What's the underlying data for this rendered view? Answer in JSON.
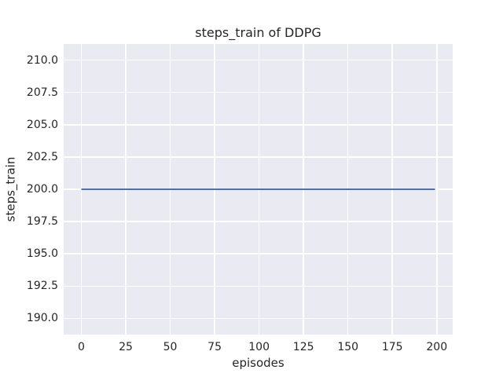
{
  "chart_data": {
    "type": "line",
    "title": "steps_train of DDPG",
    "xlabel": "episodes",
    "ylabel": "steps_train",
    "series": [
      {
        "name": "steps_train",
        "x": [
          0,
          199
        ],
        "y": [
          200,
          200
        ],
        "color": "#4c72b0",
        "line_width": 2
      }
    ],
    "x_ticks": [
      {
        "value": 0,
        "label": "0"
      },
      {
        "value": 25,
        "label": "25"
      },
      {
        "value": 50,
        "label": "50"
      },
      {
        "value": 75,
        "label": "75"
      },
      {
        "value": 100,
        "label": "100"
      },
      {
        "value": 125,
        "label": "125"
      },
      {
        "value": 150,
        "label": "150"
      },
      {
        "value": 175,
        "label": "175"
      },
      {
        "value": 200,
        "label": "200"
      }
    ],
    "y_ticks": [
      {
        "value": 190.0,
        "label": "190.0"
      },
      {
        "value": 192.5,
        "label": "192.5"
      },
      {
        "value": 195.0,
        "label": "195.0"
      },
      {
        "value": 197.5,
        "label": "197.5"
      },
      {
        "value": 200.0,
        "label": "200.0"
      },
      {
        "value": 202.5,
        "label": "202.5"
      },
      {
        "value": 205.0,
        "label": "205.0"
      },
      {
        "value": 207.5,
        "label": "207.5"
      },
      {
        "value": 210.0,
        "label": "210.0"
      }
    ],
    "xlim": [
      -9.95,
      208.95
    ],
    "ylim": [
      188.75,
      211.25
    ],
    "grid": true,
    "legend": false,
    "style": {
      "figure_bg": "#ffffff",
      "plot_bg": "#eaeaf2",
      "grid_color": "#ffffff",
      "text_color": "#262626"
    }
  }
}
